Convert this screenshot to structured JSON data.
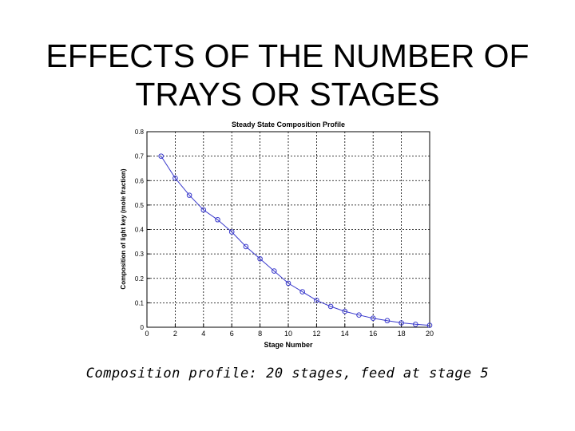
{
  "slide": {
    "title_line1": "EFFECTS OF THE NUMBER OF",
    "title_line2": "TRAYS OR STAGES",
    "caption": "Composition profile: 20 stages, feed at stage 5"
  },
  "chart_data": {
    "type": "line",
    "title": "Steady State Composition Profile",
    "xlabel": "Stage Number",
    "ylabel": "Composition of light key (mole fraction)",
    "xlim": [
      0,
      20
    ],
    "ylim": [
      0,
      0.8
    ],
    "xticks": [
      0,
      2,
      4,
      6,
      8,
      10,
      12,
      14,
      16,
      18,
      20
    ],
    "yticks": [
      0,
      0.1,
      0.2,
      0.3,
      0.4,
      0.5,
      0.6,
      0.7,
      0.8
    ],
    "grid": true,
    "line_color": "#3a3acc",
    "x": [
      1,
      2,
      3,
      4,
      5,
      6,
      7,
      8,
      9,
      10,
      11,
      12,
      13,
      14,
      15,
      16,
      17,
      18,
      19,
      20
    ],
    "values": [
      0.7,
      0.61,
      0.54,
      0.48,
      0.44,
      0.39,
      0.33,
      0.28,
      0.23,
      0.18,
      0.145,
      0.11,
      0.085,
      0.065,
      0.05,
      0.037,
      0.027,
      0.018,
      0.012,
      0.008
    ]
  }
}
